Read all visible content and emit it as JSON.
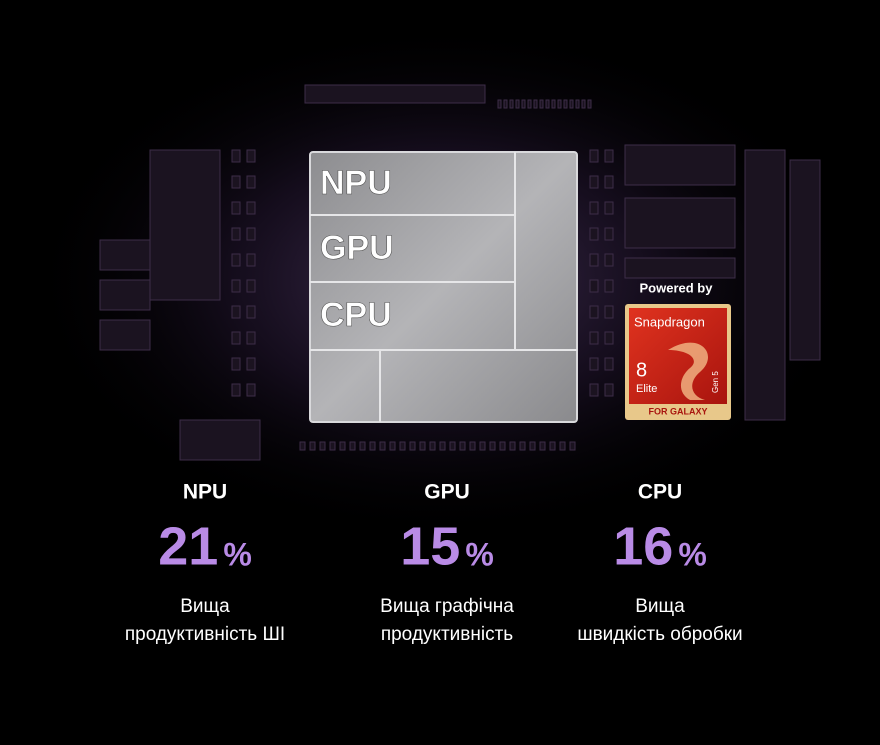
{
  "chip": {
    "blocks": [
      "NPU",
      "GPU",
      "CPU"
    ]
  },
  "badge": {
    "powered_by": "Powered by",
    "brand": "Snapdragon",
    "model_number": "8",
    "model_name": "Elite",
    "generation": "Gen 5",
    "edition": "FOR GALAXY"
  },
  "stats": [
    {
      "label": "NPU",
      "value": "21",
      "unit": "%",
      "description": [
        "Вища",
        "продуктивність ШІ"
      ]
    },
    {
      "label": "GPU",
      "value": "15",
      "unit": "%",
      "description": [
        "Вища графічна",
        "продуктивність"
      ]
    },
    {
      "label": "CPU",
      "value": "16",
      "unit": "%",
      "description": [
        "Вища",
        "швидкість обробки"
      ]
    }
  ]
}
